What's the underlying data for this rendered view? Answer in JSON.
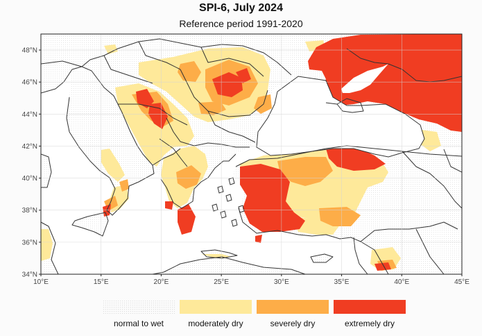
{
  "title": "SPI-6, July 2024",
  "subtitle": "Reference period 1991-2020",
  "map": {
    "extent": {
      "lon": [
        10,
        45
      ],
      "lat": [
        34,
        49
      ]
    },
    "x_ticks": [
      {
        "value": 10,
        "label": "10°E"
      },
      {
        "value": 15,
        "label": "15°E"
      },
      {
        "value": 20,
        "label": "20°E"
      },
      {
        "value": 25,
        "label": "25°E"
      },
      {
        "value": 30,
        "label": "30°E"
      },
      {
        "value": 35,
        "label": "35°E"
      },
      {
        "value": 40,
        "label": "40°E"
      },
      {
        "value": 45,
        "label": "45°E"
      }
    ],
    "y_ticks": [
      {
        "value": 34,
        "label": "34°N"
      },
      {
        "value": 36,
        "label": "36°N"
      },
      {
        "value": 38,
        "label": "38°N"
      },
      {
        "value": 40,
        "label": "40°N"
      },
      {
        "value": 42,
        "label": "42°N"
      },
      {
        "value": 44,
        "label": "44°N"
      },
      {
        "value": 46,
        "label": "46°N"
      },
      {
        "value": 48,
        "label": "48°N"
      }
    ],
    "grid": true
  },
  "legend": {
    "placement": "bottom",
    "items": [
      {
        "key": "normal",
        "label": "normal to wet",
        "color": "#fbfbfb"
      },
      {
        "key": "moderate",
        "label": "moderately dry",
        "color": "#fee99a"
      },
      {
        "key": "severe",
        "label": "severely dry",
        "color": "#fdad48"
      },
      {
        "key": "extreme",
        "label": "extremely dry",
        "color": "#f03d22"
      }
    ]
  },
  "colors": {
    "water": "#ffffff",
    "land_wet": "#fbfbfb",
    "border": "#333333",
    "moderate": "#fee99a",
    "severe": "#fdad48",
    "extreme": "#f03d22"
  }
}
